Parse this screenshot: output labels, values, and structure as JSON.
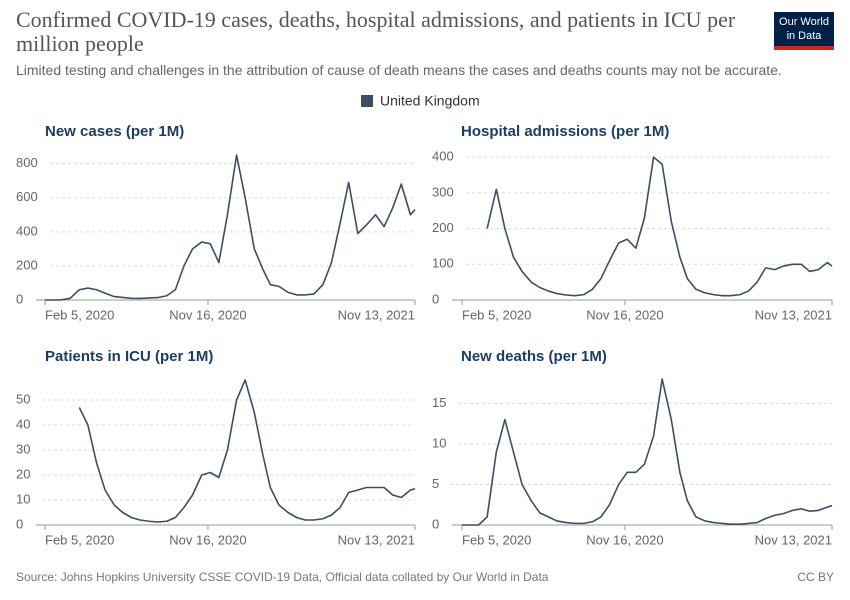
{
  "title": "Confirmed COVID-19 cases, deaths, hospital admissions, and patients in ICU per million people",
  "subtitle": "Limited testing and challenges in the attribution of cause of death means the cases and deaths counts may not be accurate.",
  "logo": {
    "line1": "Our World",
    "line2": "in Data"
  },
  "legend": {
    "name": "United Kingdom",
    "color": "#3c4e66"
  },
  "source": "Source: Johns Hopkins University CSSE COVID-19 Data, Official data collated by Our World in Data",
  "license": "CC BY",
  "chart_data": [
    {
      "type": "line",
      "title": "New cases (per 1M)",
      "color": "#3c4e66",
      "x": [
        "2020-02-05",
        "2020-02-20",
        "2020-03-05",
        "2020-03-20",
        "2020-04-05",
        "2020-04-20",
        "2020-05-05",
        "2020-05-20",
        "2020-06-05",
        "2020-06-20",
        "2020-07-05",
        "2020-07-20",
        "2020-08-05",
        "2020-08-20",
        "2020-09-05",
        "2020-09-20",
        "2020-10-05",
        "2020-10-20",
        "2020-11-05",
        "2020-11-20",
        "2020-12-05",
        "2020-12-20",
        "2021-01-05",
        "2021-01-20",
        "2021-02-05",
        "2021-02-20",
        "2021-03-05",
        "2021-03-20",
        "2021-04-05",
        "2021-04-20",
        "2021-05-05",
        "2021-05-20",
        "2021-06-05",
        "2021-06-20",
        "2021-07-05",
        "2021-07-20",
        "2021-08-05",
        "2021-08-20",
        "2021-09-05",
        "2021-09-20",
        "2021-10-05",
        "2021-10-20",
        "2021-11-05",
        "2021-11-13"
      ],
      "values": [
        0,
        0,
        1,
        10,
        60,
        70,
        60,
        40,
        20,
        15,
        10,
        9,
        12,
        14,
        25,
        60,
        200,
        300,
        340,
        330,
        220,
        500,
        850,
        600,
        300,
        180,
        90,
        80,
        45,
        30,
        30,
        35,
        90,
        220,
        450,
        690,
        390,
        440,
        500,
        430,
        540,
        680,
        500,
        530
      ],
      "xlim": [
        "2020-02-05",
        "2021-11-13"
      ],
      "xticks": [
        {
          "value": "2020-02-05",
          "label": "Feb 5, 2020"
        },
        {
          "value": "2020-11-16",
          "label": "Nov 16, 2020"
        },
        {
          "value": "2021-11-13",
          "label": "Nov 13, 2021"
        }
      ],
      "ylim": [
        0,
        880
      ],
      "yticks": [
        0,
        200,
        400,
        600,
        800
      ],
      "grid": true
    },
    {
      "type": "line",
      "title": "Hospital admissions (per 1M)",
      "color": "#3c4e66",
      "x": [
        "2020-02-05",
        "2020-02-20",
        "2020-03-05",
        "2020-03-20",
        "2020-04-05",
        "2020-04-20",
        "2020-05-05",
        "2020-05-20",
        "2020-06-05",
        "2020-06-20",
        "2020-07-05",
        "2020-07-20",
        "2020-08-05",
        "2020-08-20",
        "2020-09-05",
        "2020-09-20",
        "2020-10-05",
        "2020-10-20",
        "2020-11-05",
        "2020-11-20",
        "2020-12-05",
        "2020-12-20",
        "2021-01-05",
        "2021-01-20",
        "2021-02-05",
        "2021-02-20",
        "2021-03-05",
        "2021-03-20",
        "2021-04-05",
        "2021-04-20",
        "2021-05-05",
        "2021-05-20",
        "2021-06-05",
        "2021-06-20",
        "2021-07-05",
        "2021-07-20",
        "2021-08-05",
        "2021-08-20",
        "2021-09-05",
        "2021-09-20",
        "2021-10-05",
        "2021-10-20",
        "2021-11-05",
        "2021-11-13"
      ],
      "values": [
        null,
        null,
        null,
        200,
        310,
        200,
        120,
        80,
        50,
        35,
        25,
        18,
        14,
        12,
        15,
        30,
        60,
        110,
        160,
        170,
        145,
        230,
        400,
        380,
        220,
        120,
        60,
        30,
        20,
        15,
        12,
        12,
        15,
        25,
        50,
        90,
        85,
        95,
        100,
        100,
        80,
        85,
        105,
        95
      ],
      "xlim": [
        "2020-02-05",
        "2021-11-13"
      ],
      "xticks": [
        {
          "value": "2020-02-05",
          "label": "Feb 5, 2020"
        },
        {
          "value": "2020-11-16",
          "label": "Nov 16, 2020"
        },
        {
          "value": "2021-11-13",
          "label": "Nov 13, 2021"
        }
      ],
      "ylim": [
        0,
        420
      ],
      "yticks": [
        0,
        100,
        200,
        300,
        400
      ],
      "grid": true
    },
    {
      "type": "line",
      "title": "Patients in ICU (per 1M)",
      "color": "#3c4e66",
      "x": [
        "2020-02-05",
        "2020-02-20",
        "2020-03-05",
        "2020-03-20",
        "2020-04-05",
        "2020-04-20",
        "2020-05-05",
        "2020-05-20",
        "2020-06-05",
        "2020-06-20",
        "2020-07-05",
        "2020-07-20",
        "2020-08-05",
        "2020-08-20",
        "2020-09-05",
        "2020-09-20",
        "2020-10-05",
        "2020-10-20",
        "2020-11-05",
        "2020-11-20",
        "2020-12-05",
        "2020-12-20",
        "2021-01-05",
        "2021-01-20",
        "2021-02-05",
        "2021-02-20",
        "2021-03-05",
        "2021-03-20",
        "2021-04-05",
        "2021-04-20",
        "2021-05-05",
        "2021-05-20",
        "2021-06-05",
        "2021-06-20",
        "2021-07-05",
        "2021-07-20",
        "2021-08-05",
        "2021-08-20",
        "2021-09-05",
        "2021-09-20",
        "2021-10-05",
        "2021-10-20",
        "2021-11-05",
        "2021-11-13"
      ],
      "values": [
        null,
        null,
        null,
        null,
        47,
        40,
        25,
        14,
        8,
        5,
        3,
        2,
        1.5,
        1.2,
        1.5,
        3,
        7,
        12,
        20,
        21,
        19,
        30,
        50,
        58,
        45,
        28,
        15,
        8,
        5,
        3,
        2,
        2,
        2.5,
        4,
        7,
        13,
        14,
        15,
        15,
        15,
        12,
        11,
        14,
        14.5
      ],
      "xlim": [
        "2020-02-05",
        "2021-11-13"
      ],
      "xticks": [
        {
          "value": "2020-02-05",
          "label": "Feb 5, 2020"
        },
        {
          "value": "2020-11-16",
          "label": "Nov 16, 2020"
        },
        {
          "value": "2021-11-13",
          "label": "Nov 13, 2021"
        }
      ],
      "ylim": [
        0,
        60
      ],
      "yticks": [
        0,
        10,
        20,
        30,
        40,
        50
      ],
      "grid": true
    },
    {
      "type": "line",
      "title": "New deaths (per 1M)",
      "color": "#3c4e66",
      "x": [
        "2020-02-05",
        "2020-02-20",
        "2020-03-05",
        "2020-03-20",
        "2020-04-05",
        "2020-04-20",
        "2020-05-05",
        "2020-05-20",
        "2020-06-05",
        "2020-06-20",
        "2020-07-05",
        "2020-07-20",
        "2020-08-05",
        "2020-08-20",
        "2020-09-05",
        "2020-09-20",
        "2020-10-05",
        "2020-10-20",
        "2020-11-05",
        "2020-11-20",
        "2020-12-05",
        "2020-12-20",
        "2021-01-05",
        "2021-01-20",
        "2021-02-05",
        "2021-02-20",
        "2021-03-05",
        "2021-03-20",
        "2021-04-05",
        "2021-04-20",
        "2021-05-05",
        "2021-05-20",
        "2021-06-05",
        "2021-06-20",
        "2021-07-05",
        "2021-07-20",
        "2021-08-05",
        "2021-08-20",
        "2021-09-05",
        "2021-09-20",
        "2021-10-05",
        "2021-10-20",
        "2021-11-05",
        "2021-11-13"
      ],
      "values": [
        0,
        0,
        0,
        1,
        9,
        13,
        9,
        5,
        3,
        1.5,
        1,
        0.5,
        0.3,
        0.2,
        0.2,
        0.4,
        1,
        2.5,
        5,
        6.5,
        6.5,
        7.5,
        11,
        18,
        13,
        6.5,
        3,
        1,
        0.5,
        0.3,
        0.2,
        0.1,
        0.1,
        0.2,
        0.3,
        0.8,
        1.2,
        1.4,
        1.8,
        2,
        1.7,
        1.8,
        2.2,
        2.4
      ],
      "xlim": [
        "2020-02-05",
        "2021-11-13"
      ],
      "xticks": [
        {
          "value": "2020-02-05",
          "label": "Feb 5, 2020"
        },
        {
          "value": "2020-11-16",
          "label": "Nov 16, 2020"
        },
        {
          "value": "2021-11-13",
          "label": "Nov 13, 2021"
        }
      ],
      "ylim": [
        0,
        18.5
      ],
      "yticks": [
        0,
        5,
        10,
        15
      ],
      "grid": true
    }
  ]
}
